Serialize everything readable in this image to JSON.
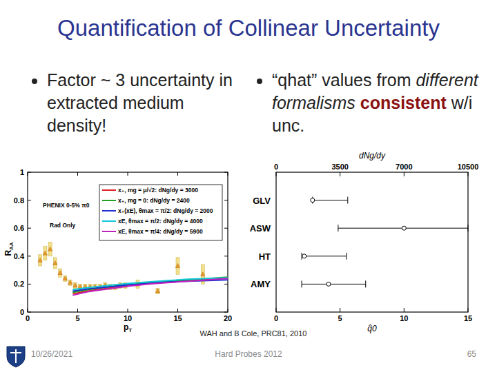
{
  "slide": {
    "title": "Quantification of Collinear Uncertainty",
    "bullets": [
      [
        "Factor ~ 3 uncertainty in extracted medium density!"
      ],
      [
        "“qhat” values from ",
        "different formalisms ",
        "consistent",
        " w/i unc."
      ]
    ],
    "citation": "WAH and B Cole, PRC81, 2010",
    "footer": {
      "date": "10/26/2021",
      "conference": "Hard Probes 2012",
      "page": "65"
    }
  },
  "chart_data": [
    {
      "type": "line",
      "xlabel": "pT",
      "ylabel": "RAA",
      "xlim": [
        0,
        20
      ],
      "xticks": [
        0,
        5,
        10,
        15,
        20
      ],
      "ylim": [
        0,
        1
      ],
      "yticks": [
        0,
        0.2,
        0.4,
        0.6,
        0.8,
        1
      ],
      "grid": false,
      "legend": "upper right",
      "annotations": [
        "Rad Only"
      ],
      "x": [
        4.5,
        6,
        8,
        10,
        12,
        14,
        16,
        18,
        20
      ],
      "series": [
        {
          "name": "PHENIX 0-5% π0",
          "type": "scatter",
          "marker": "triangle",
          "color": "#e89a2c",
          "x": [
            1.25,
            1.75,
            2.25,
            2.75,
            3.25,
            3.75,
            4.25,
            4.75,
            5.25,
            5.75,
            6.25,
            6.75,
            7.25,
            7.75,
            8.25,
            8.75,
            9.25,
            9.75,
            11,
            13,
            15,
            17.5
          ],
          "values": [
            0.37,
            0.42,
            0.45,
            0.35,
            0.28,
            0.24,
            0.21,
            0.19,
            0.18,
            0.18,
            0.18,
            0.18,
            0.18,
            0.19,
            0.18,
            0.18,
            0.19,
            0.19,
            0.2,
            0.15,
            0.33,
            0.27
          ],
          "errors": [
            0.04,
            0.05,
            0.05,
            0.04,
            0.03,
            0.02,
            0.02,
            0.02,
            0.02,
            0.02,
            0.02,
            0.02,
            0.02,
            0.02,
            0.02,
            0.02,
            0.02,
            0.02,
            0.03,
            0.02,
            0.06,
            0.07
          ]
        },
        {
          "name": "x₊, mg = μ/√2: dNg/dy = 3000",
          "type": "line",
          "color": "#e02020",
          "values": [
            0.13,
            0.15,
            0.17,
            0.19,
            0.205,
            0.215,
            0.225,
            0.235,
            0.245
          ]
        },
        {
          "name": "x₊, mg = 0: dNg/dy = 2400",
          "type": "line",
          "color": "#20a020",
          "values": [
            0.14,
            0.16,
            0.18,
            0.195,
            0.21,
            0.22,
            0.23,
            0.24,
            0.25
          ]
        },
        {
          "name": "x₊(xE), θmax = π/2: dNg/dy = 2000",
          "type": "line",
          "color": "#2030d0",
          "values": [
            0.15,
            0.165,
            0.18,
            0.195,
            0.205,
            0.215,
            0.22,
            0.225,
            0.23
          ]
        },
        {
          "name": "xE, θmax = π/2: dNg/dy = 4000",
          "type": "line",
          "color": "#10c8d8",
          "values": [
            0.16,
            0.175,
            0.19,
            0.205,
            0.215,
            0.225,
            0.235,
            0.24,
            0.245
          ]
        },
        {
          "name": "xE, θmax = π/4: dNg/dy = 5900",
          "type": "line",
          "color": "#c020c0",
          "values": [
            0.12,
            0.145,
            0.165,
            0.185,
            0.2,
            0.21,
            0.22,
            0.23,
            0.24
          ]
        }
      ]
    },
    {
      "type": "range",
      "orientation": "horizontal",
      "marker": "circle",
      "color": "#000000",
      "xlabel": "q̂0",
      "x2label": "dNg/dy",
      "xlim": [
        0,
        15
      ],
      "xticks": [
        0,
        5,
        10,
        15
      ],
      "x2lim": [
        0,
        10500
      ],
      "x2ticks": [
        0,
        3500,
        7000,
        10500
      ],
      "categories": [
        "GLV",
        "ASW",
        "HT",
        "AMY"
      ],
      "values": [
        2.85,
        10,
        2.2,
        4.1
      ],
      "lower": [
        2.85,
        4.85,
        2.0,
        2.0
      ],
      "upper": [
        5.6,
        15,
        5.5,
        7.0
      ]
    }
  ]
}
